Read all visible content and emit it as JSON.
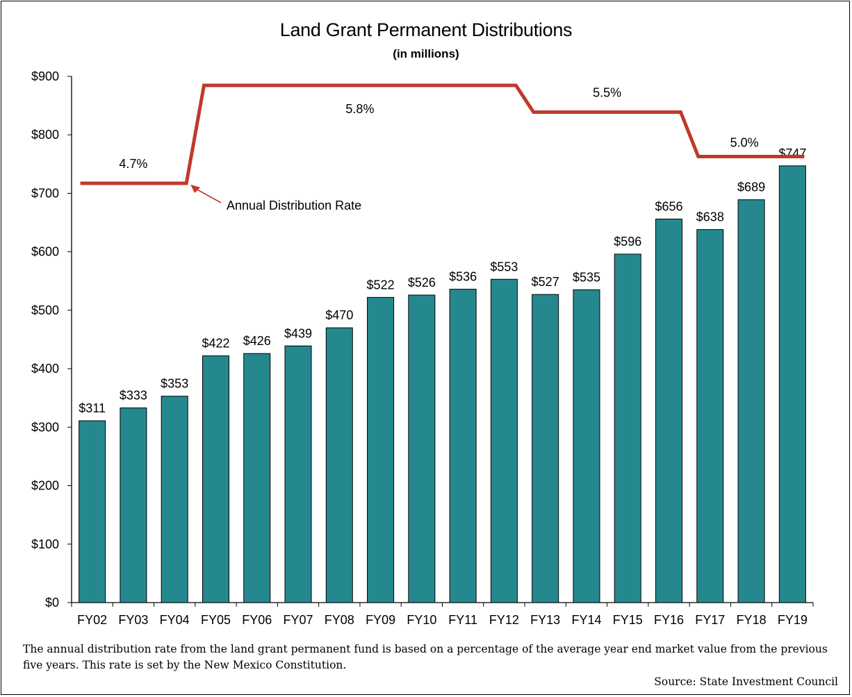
{
  "chart_data": {
    "type": "bar",
    "title": "Land Grant Permanent Distributions",
    "subtitle": "(in millions)",
    "categories": [
      "FY02",
      "FY03",
      "FY04",
      "FY05",
      "FY06",
      "FY07",
      "FY08",
      "FY09",
      "FY10",
      "FY11",
      "FY12",
      "FY13",
      "FY14",
      "FY15",
      "FY16",
      "FY17",
      "FY18",
      "FY19"
    ],
    "values": [
      311,
      333,
      353,
      422,
      426,
      439,
      470,
      522,
      526,
      536,
      553,
      527,
      535,
      596,
      656,
      638,
      689,
      747
    ],
    "data_labels": [
      "$311",
      "$333",
      "$353",
      "$422",
      "$426",
      "$439",
      "$470",
      "$522",
      "$526",
      "$536",
      "$553",
      "$527",
      "$535",
      "$596",
      "$656",
      "$638",
      "$689",
      "$747"
    ],
    "ylim": [
      0,
      900
    ],
    "yticks": [
      0,
      100,
      200,
      300,
      400,
      500,
      600,
      700,
      800,
      900
    ],
    "ytick_labels": [
      "$0",
      "$100",
      "$200",
      "$300",
      "$400",
      "$500",
      "$600",
      "$700",
      "$800",
      "$900"
    ],
    "grid": false,
    "bar_color": "#26888f",
    "rate_series": {
      "name": "Annual Distribution Rate",
      "color": "#c0392b",
      "unit": "%",
      "segments": [
        {
          "from": "FY02",
          "to": "FY04",
          "rate": 4.7,
          "label": "4.7%"
        },
        {
          "from": "FY05",
          "to": "FY12",
          "rate": 5.8,
          "label": "5.8%"
        },
        {
          "from": "FY13",
          "to": "FY16",
          "rate": 5.5,
          "label": "5.5%"
        },
        {
          "from": "FY17",
          "to": "FY19",
          "rate": 5.0,
          "label": "5.0%"
        }
      ]
    },
    "annotation": "Annual Distribution Rate"
  },
  "footnote": "The annual distribution rate from the land grant permanent fund is based on a percentage of the average year end market value from the previous five years.  This rate is set by the New Mexico Constitution.",
  "source": "Source: State Investment Council"
}
